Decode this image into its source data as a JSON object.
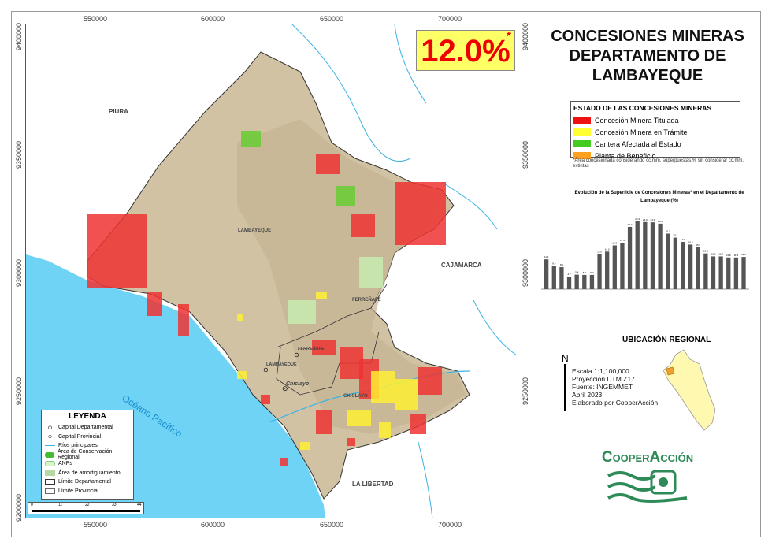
{
  "title": "CONCESIONES MINERAS DEPARTAMENTO DE LAMBAYEQUE",
  "title_lines": [
    "CONCESIONES MINERAS",
    "DEPARTAMENTO DE",
    "LAMBAYEQUE"
  ],
  "headline": {
    "value": "12.0%",
    "asterisk": "*",
    "color": "#ee0000",
    "bg": "#ffff66"
  },
  "map": {
    "x_ticks": [
      "550000",
      "600000",
      "650000",
      "700000"
    ],
    "y_ticks": [
      "9400000",
      "9350000",
      "9300000",
      "9250000",
      "9200000"
    ],
    "regions": [
      "PIURA",
      "CAJAMARCA",
      "LA LIBERTAD"
    ],
    "provinces": [
      "LAMBAYEQUE",
      "FERREÑAFE",
      "CHICLAYO"
    ],
    "cities": [
      "FERREÑAFE",
      "LAMBAYEQUE",
      "Chiclayo"
    ],
    "ocean": "Océano Pacífico",
    "colors": {
      "sea": "#6fd3f5",
      "land": "#d2c2a4",
      "outside": "#ffffff",
      "titulada": "#ee3333",
      "tramite": "#ffee33",
      "cantera": "#66cc33",
      "planta": "#ff9900"
    }
  },
  "status_legend": {
    "title": "ESTADO DE LAS CONCESIONES MINERAS",
    "items": [
      {
        "label": "Concesión Minera Titulada",
        "color": "#ee1111"
      },
      {
        "label": "Concesión Minera en Trámite",
        "color": "#ffff33"
      },
      {
        "label": "Cantera Afectada al Estado",
        "color": "#44cc22"
      },
      {
        "label": "Planta de Beneficio",
        "color": "#ffa020"
      }
    ],
    "note": "*Área concesionada considerando cc.mm. superpuestas,% sin considerar cc.mm. extintas"
  },
  "legend": {
    "title": "LEYENDA",
    "items": [
      "Capital Departamental",
      "Capital Provincial",
      "Ríos principales",
      "Área de Conservación Regional",
      "ANPs",
      "Área de amortiguamiento",
      "Límite Departamental",
      "Límite Provincial"
    ]
  },
  "scale_bar": [
    "0",
    "11",
    "22",
    "33",
    "44"
  ],
  "chart_data": {
    "type": "bar",
    "title": "Evolución de la Superficie de Concesiones Mineras* en el Departamento de Lambayeque (%)",
    "values": [
      11.1,
      8.6,
      8.2,
      4.7,
      5.4,
      5.3,
      5.3,
      13.0,
      14.0,
      16.3,
      17.3,
      23.2,
      25.3,
      25.0,
      24.9,
      24.4,
      20.7,
      19.2,
      17.6,
      16.6,
      15.6,
      13.3,
      12.2,
      12.2,
      11.8,
      11.8,
      12.0
    ],
    "color": "#555555",
    "ylim": [
      0,
      27
    ],
    "grid": false
  },
  "ubicacion": {
    "title": "UBICACIÓN REGIONAL"
  },
  "info": {
    "north": "N",
    "lines": [
      "Escala  1:1,100,000",
      "Proyección UTM Z17",
      "Fuente: INGEMMET",
      "Abril 2023",
      "Elaborado por CooperAcción"
    ]
  },
  "logo": {
    "text": "CooperAcción",
    "color": "#2e8b57"
  }
}
